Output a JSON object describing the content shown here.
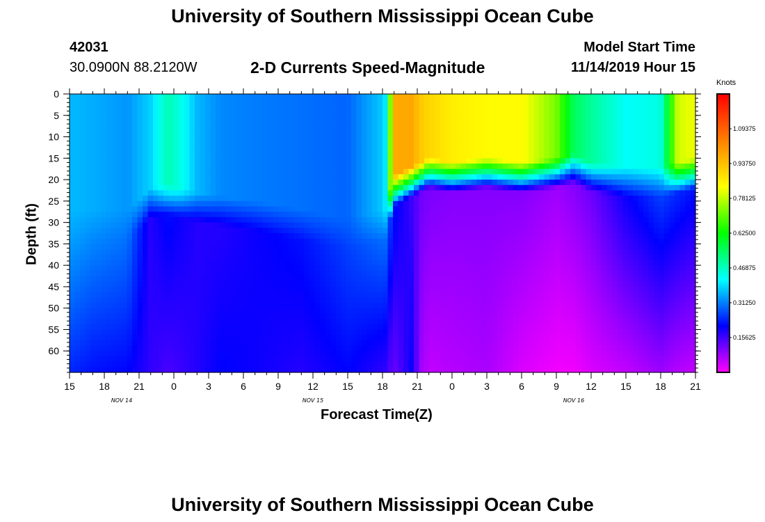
{
  "page": {
    "title": "University of Southern Mississippi Ocean Cube",
    "station_id": "42031",
    "coordinates": "30.0900N 88.2120W",
    "plot_title": "2-D Currents Speed-Magnitude",
    "model_start_label": "Model Start Time",
    "model_start_value": "11/14/2019 Hour 15",
    "footer_title": "University of Southern Mississippi Ocean Cube"
  },
  "colors": {
    "background": "#ffffff",
    "colorbar_stops": [
      "#ff00ff",
      "#0000ff",
      "#00ffff",
      "#00ff00",
      "#ffff00",
      "#ff8000",
      "#ff0000"
    ]
  },
  "chart_data": {
    "type": "heatmap",
    "title": "2-D Currents Speed-Magnitude",
    "xlabel": "Forecast Time(Z)",
    "ylabel": "Depth (ft)",
    "x_unit": "hours since model start (11/14/2019 15Z)",
    "xlim": [
      0,
      54
    ],
    "ylim": [
      0,
      65
    ],
    "x_ticks": [
      {
        "x": 0,
        "label": "15"
      },
      {
        "x": 3,
        "label": "18"
      },
      {
        "x": 6,
        "label": "21"
      },
      {
        "x": 9,
        "label": "0"
      },
      {
        "x": 12,
        "label": "3"
      },
      {
        "x": 15,
        "label": "6"
      },
      {
        "x": 18,
        "label": "9"
      },
      {
        "x": 21,
        "label": "12"
      },
      {
        "x": 24,
        "label": "15"
      },
      {
        "x": 27,
        "label": "18"
      },
      {
        "x": 30,
        "label": "21"
      },
      {
        "x": 33,
        "label": "0"
      },
      {
        "x": 36,
        "label": "3"
      },
      {
        "x": 39,
        "label": "6"
      },
      {
        "x": 42,
        "label": "9"
      },
      {
        "x": 45,
        "label": "12"
      },
      {
        "x": 48,
        "label": "15"
      },
      {
        "x": 51,
        "label": "18"
      },
      {
        "x": 54,
        "label": "21"
      }
    ],
    "date_labels": [
      {
        "x": 4.5,
        "label": "NOV 14"
      },
      {
        "x": 21,
        "label": "NOV 15"
      },
      {
        "x": 43.5,
        "label": "NOV 16"
      }
    ],
    "y_ticks": [
      0,
      5,
      10,
      15,
      20,
      25,
      30,
      35,
      40,
      45,
      50,
      55,
      60
    ],
    "colorbar": {
      "unit": "Knots",
      "min": 0,
      "max": 1.25,
      "labels": [
        "1.09375",
        "0.93750",
        "0.78125",
        "0.62500",
        "0.46875",
        "0.31250",
        "0.15625"
      ],
      "label_values": [
        1.09375,
        0.9375,
        0.78125,
        0.625,
        0.46875,
        0.3125,
        0.15625
      ]
    },
    "speed_profile_breakpoints": {
      "time_hours": [
        0,
        2,
        5,
        7,
        8.5,
        9.5,
        11,
        13,
        16,
        20,
        24,
        27.2,
        28,
        29.5,
        30.3,
        31,
        33,
        36,
        39,
        42,
        43.5,
        45,
        48,
        51,
        52.5,
        54
      ],
      "surface_speed_kn": [
        0.36,
        0.35,
        0.33,
        0.38,
        0.48,
        0.44,
        0.36,
        0.32,
        0.31,
        0.3,
        0.29,
        0.38,
        0.97,
        0.98,
        0.92,
        0.9,
        0.86,
        0.84,
        0.84,
        0.72,
        0.55,
        0.5,
        0.42,
        0.44,
        0.8,
        0.82
      ],
      "mid_depth_speed_kn": [
        0.34,
        0.32,
        0.3,
        0.18,
        0.22,
        0.2,
        0.18,
        0.18,
        0.2,
        0.22,
        0.26,
        0.3,
        0.22,
        0.16,
        0.12,
        0.11,
        0.1,
        0.1,
        0.1,
        0.08,
        0.1,
        0.12,
        0.2,
        0.26,
        0.24,
        0.22
      ],
      "bottom_speed_kn": [
        0.24,
        0.22,
        0.21,
        0.17,
        0.15,
        0.16,
        0.18,
        0.21,
        0.2,
        0.18,
        0.21,
        0.17,
        0.12,
        0.2,
        0.08,
        0.05,
        0.06,
        0.07,
        0.03,
        0.01,
        0.01,
        0.03,
        0.05,
        0.08,
        0.06,
        0.05
      ],
      "pycnocline_depth_ft": [
        30,
        30,
        30,
        25,
        24,
        25,
        26,
        27,
        28,
        30,
        32,
        30,
        22,
        20,
        19,
        18,
        19,
        18,
        19,
        18,
        17,
        19,
        20,
        20,
        19,
        18
      ]
    }
  }
}
